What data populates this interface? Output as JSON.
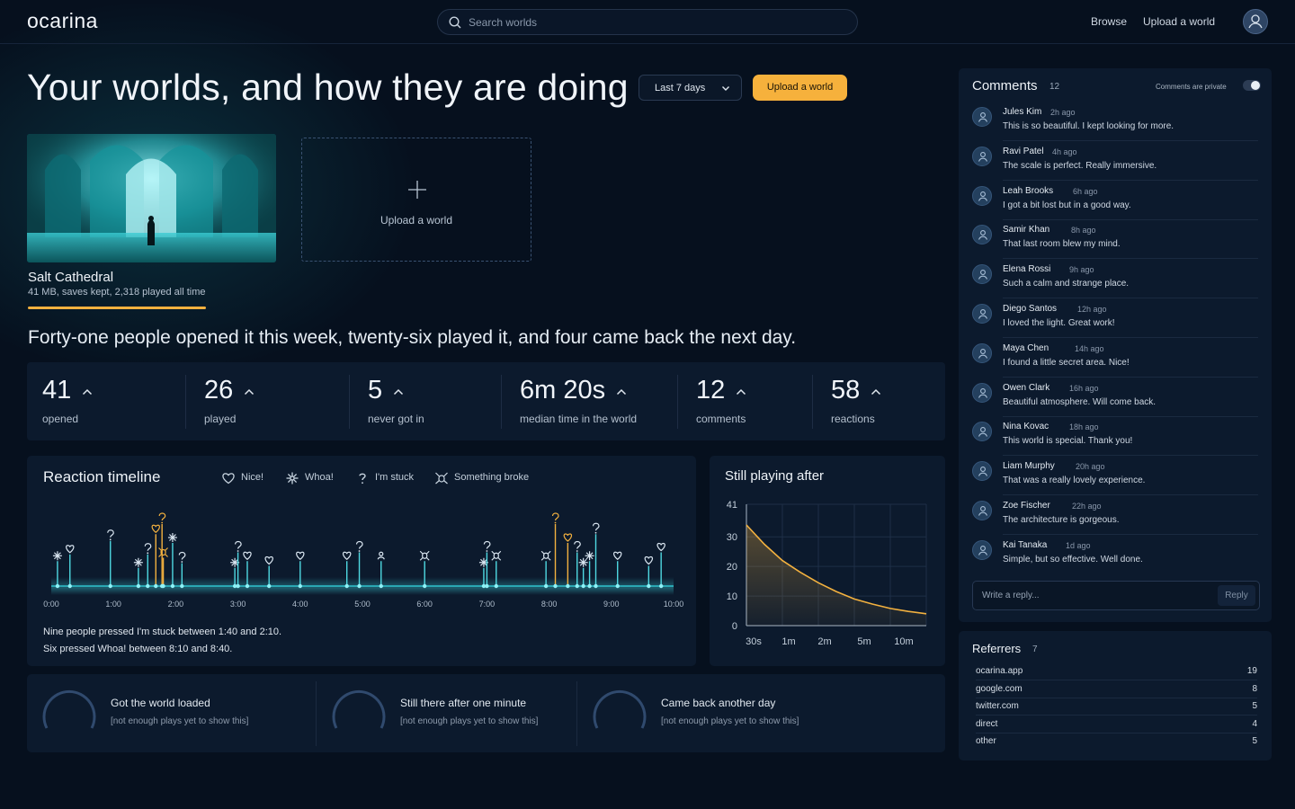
{
  "app": {
    "logo": "ocarina"
  },
  "topbar": {
    "search_placeholder": "Search worlds",
    "nav": [
      "Browse",
      "Upload a world"
    ]
  },
  "header": {
    "title": "Your worlds, and how they are doing",
    "range": "Last 7 days",
    "upload_button": "Upload a world"
  },
  "worlds": [
    {
      "name": "Salt Cathedral",
      "meta": "41 MB, saves kept, 2,318 played all time"
    }
  ],
  "upload_tile": {
    "label": "Upload a world"
  },
  "summary": "Forty-one people opened it this week, twenty-six played it, and four came back the next day.",
  "stats": [
    {
      "value": "41",
      "label": "opened"
    },
    {
      "value": "26",
      "label": "played"
    },
    {
      "value": "5",
      "label": "never got in"
    },
    {
      "value": "6m 20s",
      "label": "median time in the world"
    },
    {
      "value": "12",
      "label": "comments"
    },
    {
      "value": "58",
      "label": "reactions"
    }
  ],
  "timeline": {
    "title": "Reaction timeline",
    "legend": [
      {
        "key": "nice",
        "label": "Nice!",
        "icon": "heart-icon"
      },
      {
        "key": "whoa",
        "label": "Whoa!",
        "icon": "sparkle-icon"
      },
      {
        "key": "stuck",
        "label": "I'm stuck",
        "icon": "question-icon"
      },
      {
        "key": "broke",
        "label": "Something broke",
        "icon": "bug-icon"
      }
    ],
    "x_ticks": [
      "0:00",
      "1:00",
      "2:00",
      "3:00",
      "4:00",
      "5:00",
      "6:00",
      "7:00",
      "8:00",
      "9:00",
      "10:00"
    ],
    "x_range_min": [
      0,
      10
    ],
    "markers": [
      {
        "t": 0.1,
        "kind": "whoa",
        "h": 0.45,
        "hl": false
      },
      {
        "t": 0.3,
        "kind": "nice",
        "h": 0.55,
        "hl": false
      },
      {
        "t": 0.95,
        "kind": "stuck",
        "h": 0.75,
        "hl": false
      },
      {
        "t": 1.4,
        "kind": "whoa",
        "h": 0.35,
        "hl": false
      },
      {
        "t": 1.55,
        "kind": "stuck",
        "h": 0.55,
        "hl": false
      },
      {
        "t": 1.68,
        "kind": "nice",
        "h": 0.85,
        "hl": true
      },
      {
        "t": 1.78,
        "kind": "stuck",
        "h": 1.0,
        "hl": true
      },
      {
        "t": 1.8,
        "kind": "broke",
        "h": 0.5,
        "hl": true
      },
      {
        "t": 1.95,
        "kind": "whoa",
        "h": 0.72,
        "hl": false
      },
      {
        "t": 2.1,
        "kind": "stuck",
        "h": 0.42,
        "hl": false
      },
      {
        "t": 2.95,
        "kind": "whoa",
        "h": 0.35,
        "hl": false
      },
      {
        "t": 3.0,
        "kind": "stuck",
        "h": 0.58,
        "hl": false
      },
      {
        "t": 3.15,
        "kind": "nice",
        "h": 0.45,
        "hl": false
      },
      {
        "t": 3.5,
        "kind": "nice",
        "h": 0.38,
        "hl": false
      },
      {
        "t": 4.0,
        "kind": "nice",
        "h": 0.45,
        "hl": false
      },
      {
        "t": 4.75,
        "kind": "nice",
        "h": 0.45,
        "hl": false
      },
      {
        "t": 4.95,
        "kind": "stuck",
        "h": 0.58,
        "hl": false
      },
      {
        "t": 5.3,
        "kind": "person",
        "h": 0.45,
        "hl": false
      },
      {
        "t": 6.0,
        "kind": "broke",
        "h": 0.45,
        "hl": false
      },
      {
        "t": 6.95,
        "kind": "whoa",
        "h": 0.35,
        "hl": false
      },
      {
        "t": 7.0,
        "kind": "stuck",
        "h": 0.58,
        "hl": false
      },
      {
        "t": 7.15,
        "kind": "broke",
        "h": 0.45,
        "hl": false
      },
      {
        "t": 7.95,
        "kind": "broke",
        "h": 0.45,
        "hl": false
      },
      {
        "t": 8.1,
        "kind": "stuck",
        "h": 1.0,
        "hl": true
      },
      {
        "t": 8.3,
        "kind": "nice",
        "h": 0.72,
        "hl": true
      },
      {
        "t": 8.45,
        "kind": "stuck",
        "h": 0.58,
        "hl": false
      },
      {
        "t": 8.55,
        "kind": "whoa",
        "h": 0.35,
        "hl": false
      },
      {
        "t": 8.65,
        "kind": "whoa",
        "h": 0.45,
        "hl": false
      },
      {
        "t": 8.75,
        "kind": "stuck",
        "h": 0.85,
        "hl": false
      },
      {
        "t": 9.1,
        "kind": "nice",
        "h": 0.45,
        "hl": false
      },
      {
        "t": 9.6,
        "kind": "nice",
        "h": 0.38,
        "hl": false
      },
      {
        "t": 9.8,
        "kind": "nice",
        "h": 0.58,
        "hl": false
      }
    ],
    "captions": [
      "Nine people pressed I'm stuck between 1:40 and 2:10.",
      "Six pressed Whoa! between 8:10 and 8:40."
    ]
  },
  "chart_data": {
    "type": "line",
    "title": "Still playing after",
    "categories": [
      "30s",
      "1m",
      "2m",
      "5m",
      "10m"
    ],
    "yticks": [
      0,
      10,
      20,
      30,
      41
    ],
    "ylim": [
      0,
      41
    ],
    "series": [
      {
        "x": [
          0,
          0.5,
          1,
          1.5,
          2,
          2.5,
          3,
          3.5,
          4,
          4.5,
          5
        ],
        "values": [
          34,
          27.5,
          22,
          18,
          14.5,
          11.5,
          9,
          7.3,
          5.8,
          4.8,
          4
        ]
      }
    ]
  },
  "funnel": [
    {
      "title": "Got the world loaded",
      "note": "[not enough plays yet to show this]"
    },
    {
      "title": "Still there after one minute",
      "note": "[not enough plays yet to show this]"
    },
    {
      "title": "Came back another day",
      "note": "[not enough plays yet to show this]"
    }
  ],
  "comments": {
    "title": "Comments",
    "count": "12",
    "private_label": "Comments are private",
    "private_on": true,
    "items": [
      {
        "name": "Jules Kim",
        "time": "2h ago",
        "text": "This is so beautiful. I kept looking for more."
      },
      {
        "name": "Ravi Patel",
        "time": "4h ago",
        "text": "The scale is perfect. Really immersive."
      },
      {
        "name": "Leah Brooks",
        "time": "6h ago",
        "text": "I got a bit lost but in a good way."
      },
      {
        "name": "Samir Khan",
        "time": "8h ago",
        "text": "That last room blew my mind."
      },
      {
        "name": "Elena Rossi",
        "time": "9h ago",
        "text": "Such a calm and strange place."
      },
      {
        "name": "Diego Santos",
        "time": "12h ago",
        "text": "I loved the light. Great work!"
      },
      {
        "name": "Maya Chen",
        "time": "14h ago",
        "text": "I found a little secret area. Nice!"
      },
      {
        "name": "Owen Clark",
        "time": "16h ago",
        "text": "Beautiful atmosphere. Will come back."
      },
      {
        "name": "Nina Kovac",
        "time": "18h ago",
        "text": "This world is special. Thank you!"
      },
      {
        "name": "Liam Murphy",
        "time": "20h ago",
        "text": "That was a really lovely experience."
      },
      {
        "name": "Zoe Fischer",
        "time": "22h ago",
        "text": "The architecture is gorgeous."
      },
      {
        "name": "Kai Tanaka",
        "time": "1d ago",
        "text": "Simple, but so effective. Well done."
      }
    ],
    "reply_placeholder": "Write a reply...",
    "reply_button": "Reply"
  },
  "referrers": {
    "title": "Referrers",
    "count": "7",
    "rows": [
      {
        "source": "ocarina.app",
        "count": "19"
      },
      {
        "source": "google.com",
        "count": "8"
      },
      {
        "source": "twitter.com",
        "count": "5"
      },
      {
        "source": "direct",
        "count": "4"
      },
      {
        "source": "other",
        "count": "5"
      }
    ]
  },
  "colors": {
    "accent": "#f6b13c",
    "teal": "#3fd6e0",
    "bg": "#06101e",
    "panel": "#0c1a2d"
  }
}
